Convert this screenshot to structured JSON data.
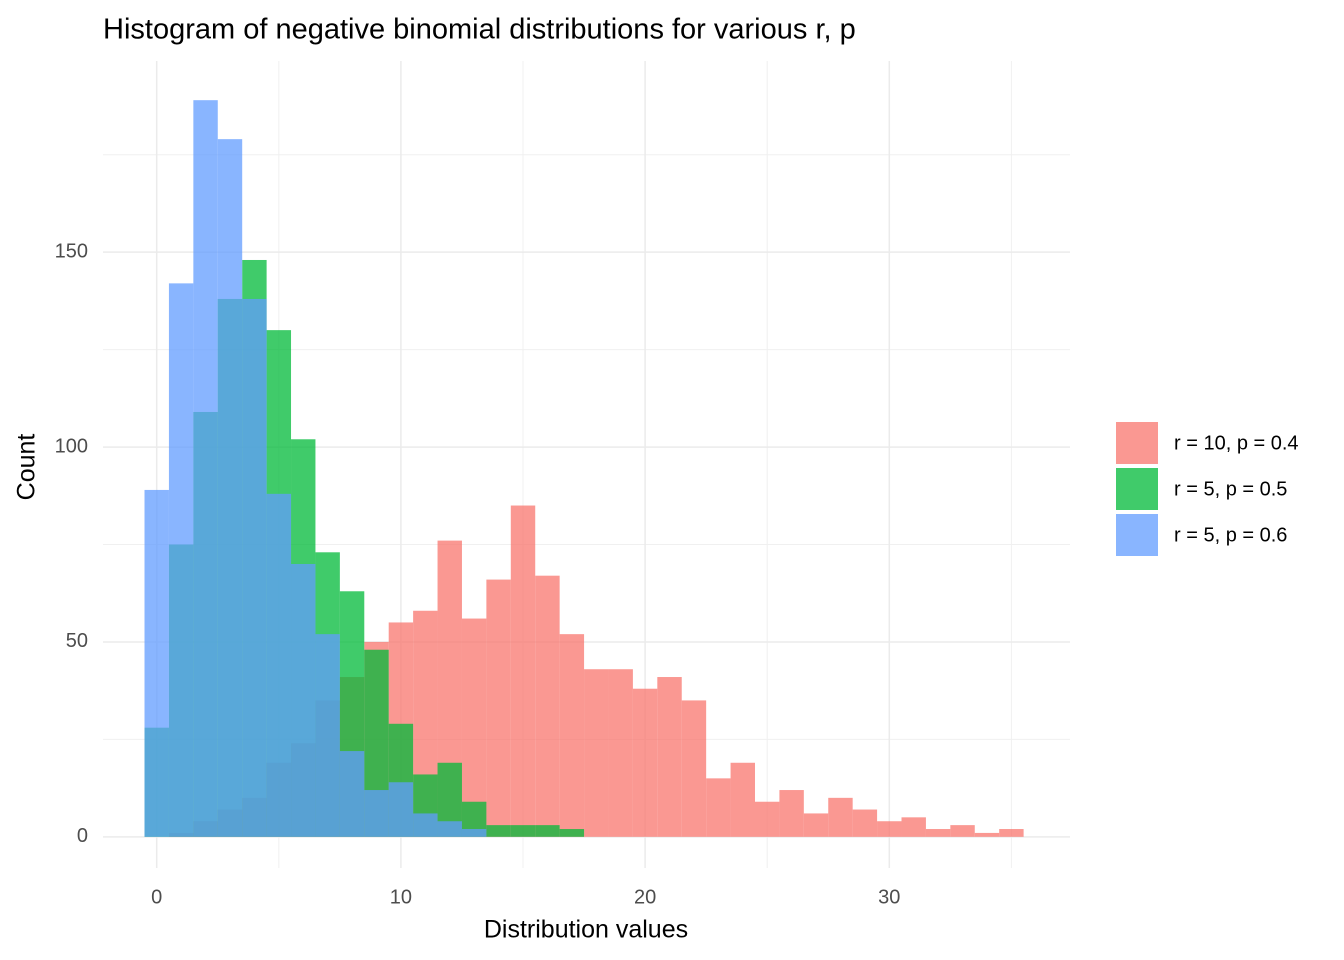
{
  "chart_data": {
    "type": "histogram",
    "title": "Histogram of negative binomial distributions for various r, p",
    "x_label": "Distribution values",
    "y_label": "Count",
    "bins": [
      -0.5,
      0.5,
      1.5,
      2.5,
      3.5,
      4.5,
      5.5,
      6.5,
      7.5,
      8.5,
      9.5,
      10.5,
      11.5,
      12.5,
      13.5,
      14.5,
      15.5,
      16.5,
      17.5,
      18.5,
      19.5,
      20.5,
      21.5,
      22.5,
      23.5,
      24.5,
      25.5,
      26.5,
      27.5,
      28.5,
      29.5,
      30.5,
      31.5,
      32.5,
      33.5,
      34.5,
      35.5
    ],
    "series": [
      {
        "name": "r = 10, p = 0.4",
        "color": "#F8766D",
        "values": [
          0,
          1,
          4,
          7,
          10,
          19,
          24,
          35,
          41,
          50,
          55,
          58,
          76,
          56,
          66,
          85,
          67,
          52,
          43,
          43,
          38,
          41,
          35,
          15,
          19,
          9,
          12,
          6,
          10,
          7,
          4,
          5,
          2,
          3,
          1,
          2
        ]
      },
      {
        "name": "r = 5, p = 0.5",
        "color": "#00BA38",
        "values": [
          28,
          75,
          109,
          138,
          148,
          130,
          102,
          73,
          63,
          48,
          29,
          16,
          19,
          9,
          3,
          3,
          3,
          2,
          0,
          0,
          0,
          0,
          0,
          0,
          0,
          0,
          0,
          0,
          0,
          0,
          0,
          0,
          0,
          0,
          0,
          0
        ]
      },
      {
        "name": "r = 5, p = 0.6",
        "color": "#619CFF",
        "values": [
          89,
          142,
          189,
          179,
          138,
          88,
          70,
          52,
          22,
          12,
          14,
          6,
          4,
          2,
          0,
          0,
          0,
          0,
          0,
          0,
          0,
          0,
          0,
          0,
          0,
          0,
          0,
          0,
          0,
          0,
          0,
          0,
          0,
          0,
          0,
          0
        ]
      }
    ],
    "opacity": 0.75,
    "xlim": [
      -2.2,
      37.4
    ],
    "ylim": [
      -8,
      197
    ],
    "xticks": [
      0,
      10,
      20,
      30
    ],
    "yticks": [
      0,
      50,
      100,
      150
    ],
    "x_minor_ticks": [
      5,
      15,
      25,
      35
    ],
    "y_minor_ticks": [
      25,
      75,
      125,
      175
    ],
    "grid": true,
    "legend": "right"
  }
}
